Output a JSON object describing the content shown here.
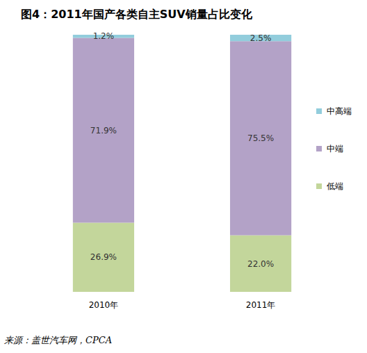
{
  "chart_data": {
    "type": "bar",
    "title": "图4：2011年国产各类自主SUV销量占比变化",
    "categories": [
      "2010年",
      "2011年"
    ],
    "series": [
      {
        "name": "低端",
        "color": "#c3d69b",
        "values": [
          26.9,
          22.0
        ],
        "value_labels": [
          "26.9%",
          "22.0%"
        ]
      },
      {
        "name": "中端",
        "color": "#b3a2c7",
        "values": [
          71.9,
          75.5
        ],
        "value_labels": [
          "71.9%",
          "75.5%"
        ]
      },
      {
        "name": "中高端",
        "color": "#92cddc",
        "values": [
          1.2,
          2.5
        ],
        "value_labels": [
          "1.2%",
          "2.5%"
        ]
      }
    ],
    "ylim": [
      0,
      100
    ],
    "stacked": true,
    "data_labels": true,
    "tick_labels": "x",
    "legend": "right",
    "grid": false,
    "source": "来源：盖世汽车网，CPCA"
  }
}
